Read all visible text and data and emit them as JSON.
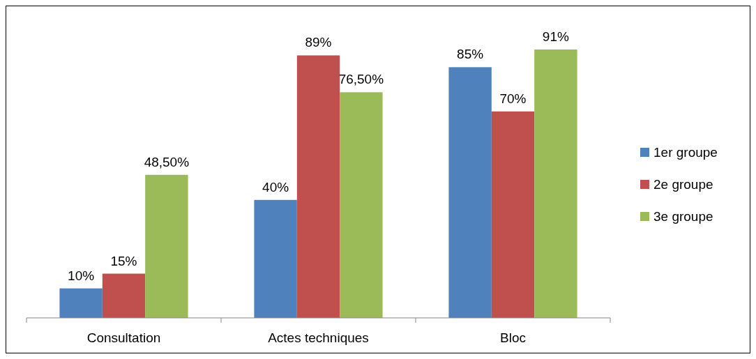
{
  "chart_data": {
    "type": "bar",
    "categories": [
      "Consultation",
      "Actes techniques",
      "Bloc"
    ],
    "series": [
      {
        "name": "1er groupe",
        "color": "#4f81bd",
        "values": [
          10,
          40,
          85
        ],
        "value_labels": [
          "10%",
          "40%",
          "85%"
        ]
      },
      {
        "name": "2e groupe",
        "color": "#c0504d",
        "values": [
          15,
          89,
          70
        ],
        "value_labels": [
          "15%",
          "89%",
          "70%"
        ]
      },
      {
        "name": "3e groupe",
        "color": "#9bbb59",
        "values": [
          48.5,
          76.5,
          91
        ],
        "value_labels": [
          "48,50%",
          "76,50%",
          "91%"
        ]
      }
    ],
    "legend": "right"
  }
}
